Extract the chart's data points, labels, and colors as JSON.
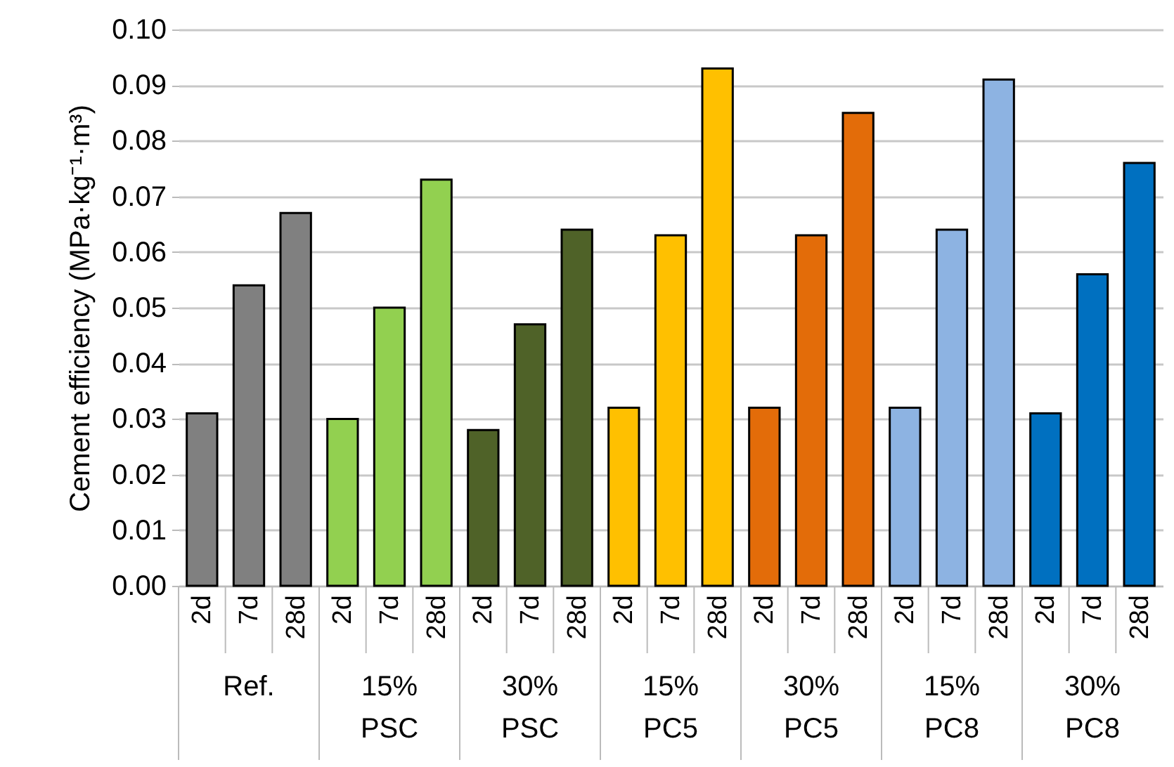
{
  "chart_data": {
    "type": "bar",
    "ylabel": "Cement efficiency (MPa·kg⁻¹·m³)",
    "categories": [
      "2d",
      "7d",
      "28d",
      "2d",
      "7d",
      "28d",
      "2d",
      "7d",
      "28d",
      "2d",
      "7d",
      "28d",
      "2d",
      "7d",
      "28d",
      "2d",
      "7d",
      "28d",
      "2d",
      "7d",
      "28d"
    ],
    "values": [
      0.031,
      0.054,
      0.067,
      0.03,
      0.05,
      0.073,
      0.028,
      0.047,
      0.064,
      0.032,
      0.063,
      0.093,
      0.032,
      0.063,
      0.085,
      0.032,
      0.064,
      0.091,
      0.031,
      0.056,
      0.076
    ],
    "colors": [
      "#808080",
      "#808080",
      "#808080",
      "#92d050",
      "#92d050",
      "#92d050",
      "#4f6228",
      "#4f6228",
      "#4f6228",
      "#ffc000",
      "#ffc000",
      "#ffc000",
      "#e36c09",
      "#e36c09",
      "#e36c09",
      "#8db3e2",
      "#8db3e2",
      "#8db3e2",
      "#0070c0",
      "#0070c0",
      "#0070c0"
    ],
    "annotations": [
      "Ref.",
      "15% PSC",
      "30% PSC",
      "15% PC5",
      "30% PC5",
      "15% PC8",
      "30% PC8"
    ],
    "ylim": [
      0,
      0.1
    ],
    "yticks": [
      {
        "value": 0,
        "label": "0.00"
      },
      {
        "value": 0.01,
        "label": "0.01"
      },
      {
        "value": 0.02,
        "label": "0.02"
      },
      {
        "value": 0.03,
        "label": "0.03"
      },
      {
        "value": 0.04,
        "label": "0.04"
      },
      {
        "value": 0.05,
        "label": "0.05"
      },
      {
        "value": 0.06,
        "label": "0.06"
      },
      {
        "value": 0.07,
        "label": "0.07"
      },
      {
        "value": 0.08,
        "label": "0.08"
      },
      {
        "value": 0.09,
        "label": "0.09"
      },
      {
        "value": 0.1,
        "label": "0.10"
      }
    ],
    "grid": "y"
  }
}
